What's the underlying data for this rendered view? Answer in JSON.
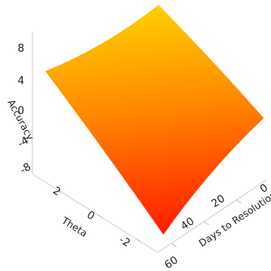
{
  "chart_data": {
    "type": "surface",
    "title": "",
    "axes": {
      "z": {
        "label": "Accuracy",
        "ticks": [
          8,
          4,
          0,
          -4,
          -8
        ],
        "range": [
          -9,
          10
        ]
      },
      "theta": {
        "label": "Theta",
        "ticks": [
          2,
          0,
          -2
        ],
        "range": [
          -3,
          3
        ]
      },
      "days": {
        "label": "Days to Resolution",
        "ticks": [
          0,
          20,
          40,
          60
        ],
        "range": [
          0,
          60
        ]
      }
    },
    "surface": {
      "corners": [
        {
          "theta": 3,
          "days": 0,
          "accuracy": 5
        },
        {
          "theta": -3,
          "days": 0,
          "accuracy": 10
        },
        {
          "theta": 3,
          "days": 60,
          "accuracy": -9
        },
        {
          "theta": -3,
          "days": 60,
          "accuracy": -4
        }
      ]
    },
    "colorscale": {
      "low": "#ff1a00",
      "mid": "#ff8800",
      "high": "#ffd000"
    },
    "grid": true
  }
}
